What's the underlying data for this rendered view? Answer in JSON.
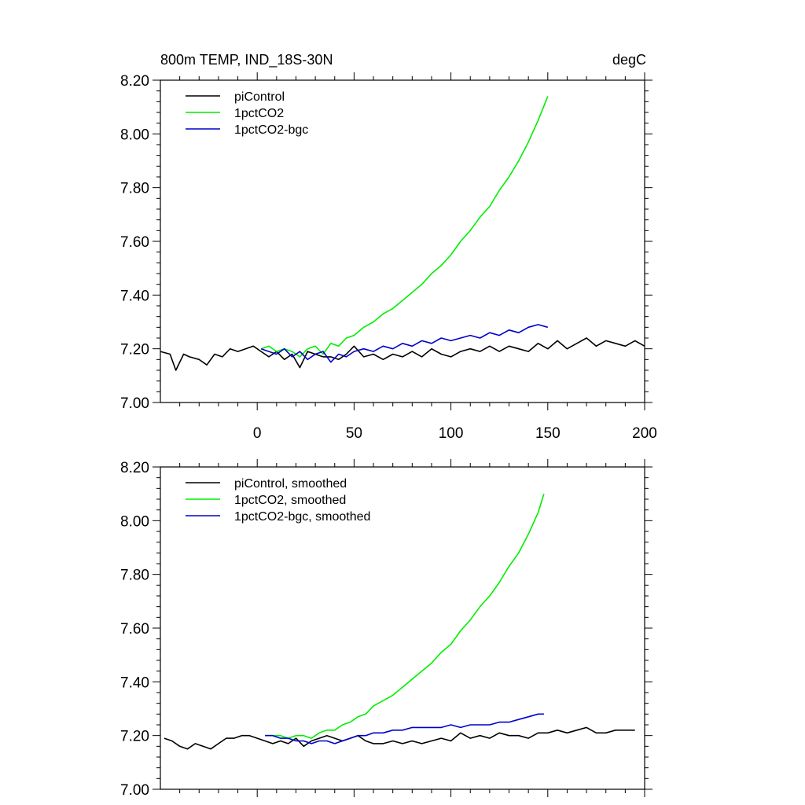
{
  "chart_data": [
    {
      "type": "line",
      "title": "800m TEMP, IND_18S-30N",
      "units": "degC",
      "ylim": [
        7.0,
        8.2
      ],
      "xlim": [
        -50,
        200
      ],
      "yticks": [
        "7.00",
        "7.20",
        "7.40",
        "7.60",
        "7.80",
        "8.00",
        "8.20"
      ],
      "xticks": [
        "0",
        "50",
        "100",
        "150",
        "200"
      ],
      "legend_position": "top-left",
      "series": [
        {
          "name": "piControl",
          "color": "#000000",
          "x": [
            -50,
            -45,
            -42,
            -38,
            -35,
            -30,
            -26,
            -22,
            -18,
            -14,
            -10,
            -6,
            -2,
            2,
            6,
            10,
            14,
            18,
            22,
            26,
            30,
            34,
            38,
            42,
            46,
            50,
            55,
            60,
            65,
            70,
            75,
            80,
            85,
            90,
            95,
            100,
            105,
            110,
            115,
            120,
            125,
            130,
            135,
            140,
            145,
            150,
            155,
            160,
            165,
            170,
            175,
            180,
            185,
            190,
            195,
            200
          ],
          "values": [
            7.19,
            7.18,
            7.12,
            7.18,
            7.17,
            7.16,
            7.14,
            7.18,
            7.17,
            7.2,
            7.19,
            7.2,
            7.21,
            7.19,
            7.17,
            7.19,
            7.16,
            7.18,
            7.13,
            7.19,
            7.18,
            7.17,
            7.17,
            7.16,
            7.18,
            7.21,
            7.17,
            7.18,
            7.16,
            7.18,
            7.17,
            7.19,
            7.17,
            7.2,
            7.18,
            7.17,
            7.19,
            7.2,
            7.19,
            7.21,
            7.19,
            7.21,
            7.2,
            7.19,
            7.22,
            7.2,
            7.23,
            7.2,
            7.22,
            7.24,
            7.21,
            7.23,
            7.22,
            7.21,
            7.23,
            7.21
          ]
        },
        {
          "name": "1pctCO2",
          "color": "#00ee00",
          "x": [
            2,
            6,
            10,
            14,
            18,
            22,
            26,
            30,
            34,
            38,
            42,
            46,
            50,
            55,
            60,
            65,
            70,
            75,
            80,
            85,
            90,
            95,
            100,
            105,
            110,
            115,
            120,
            125,
            130,
            135,
            140,
            145,
            150
          ],
          "values": [
            7.2,
            7.21,
            7.19,
            7.2,
            7.19,
            7.17,
            7.2,
            7.21,
            7.18,
            7.22,
            7.21,
            7.24,
            7.25,
            7.28,
            7.3,
            7.33,
            7.35,
            7.38,
            7.41,
            7.44,
            7.48,
            7.51,
            7.55,
            7.6,
            7.64,
            7.69,
            7.73,
            7.79,
            7.84,
            7.9,
            7.97,
            8.05,
            8.14
          ]
        },
        {
          "name": "1pctCO2-bgc",
          "color": "#0000cc",
          "x": [
            2,
            6,
            10,
            14,
            18,
            22,
            26,
            30,
            34,
            38,
            42,
            46,
            50,
            55,
            60,
            65,
            70,
            75,
            80,
            85,
            90,
            95,
            100,
            105,
            110,
            115,
            120,
            125,
            130,
            135,
            140,
            145,
            150
          ],
          "values": [
            7.2,
            7.19,
            7.18,
            7.2,
            7.17,
            7.19,
            7.16,
            7.18,
            7.19,
            7.15,
            7.18,
            7.17,
            7.19,
            7.2,
            7.19,
            7.21,
            7.2,
            7.22,
            7.21,
            7.23,
            7.22,
            7.24,
            7.23,
            7.24,
            7.25,
            7.24,
            7.26,
            7.25,
            7.27,
            7.26,
            7.28,
            7.29,
            7.28
          ]
        }
      ]
    },
    {
      "type": "line",
      "ylim": [
        7.0,
        8.2
      ],
      "xlim": [
        -50,
        200
      ],
      "yticks": [
        "7.00",
        "7.20",
        "7.40",
        "7.60",
        "7.80",
        "8.00",
        "8.20"
      ],
      "legend_position": "top-left",
      "series": [
        {
          "name": "piControl, smoothed",
          "color": "#000000",
          "x": [
            -48,
            -44,
            -40,
            -36,
            -32,
            -28,
            -24,
            -20,
            -16,
            -12,
            -8,
            -4,
            0,
            4,
            8,
            12,
            16,
            20,
            24,
            28,
            32,
            36,
            40,
            44,
            48,
            52,
            56,
            60,
            65,
            70,
            75,
            80,
            85,
            90,
            95,
            100,
            105,
            110,
            115,
            120,
            125,
            130,
            135,
            140,
            145,
            150,
            155,
            160,
            165,
            170,
            175,
            180,
            185,
            190,
            195
          ],
          "values": [
            7.19,
            7.18,
            7.16,
            7.15,
            7.17,
            7.16,
            7.15,
            7.17,
            7.19,
            7.19,
            7.2,
            7.2,
            7.19,
            7.18,
            7.17,
            7.18,
            7.17,
            7.19,
            7.16,
            7.18,
            7.19,
            7.2,
            7.19,
            7.18,
            7.19,
            7.2,
            7.18,
            7.17,
            7.17,
            7.18,
            7.17,
            7.18,
            7.17,
            7.18,
            7.19,
            7.18,
            7.21,
            7.19,
            7.2,
            7.19,
            7.21,
            7.2,
            7.2,
            7.19,
            7.21,
            7.21,
            7.22,
            7.21,
            7.22,
            7.23,
            7.21,
            7.21,
            7.22,
            7.22,
            7.22
          ]
        },
        {
          "name": "1pctCO2, smoothed",
          "color": "#00ee00",
          "x": [
            4,
            8,
            12,
            16,
            20,
            24,
            28,
            32,
            36,
            40,
            44,
            48,
            52,
            56,
            60,
            65,
            70,
            75,
            80,
            85,
            90,
            95,
            100,
            105,
            110,
            115,
            120,
            125,
            130,
            135,
            140,
            145,
            148
          ],
          "values": [
            7.2,
            7.2,
            7.2,
            7.19,
            7.2,
            7.2,
            7.19,
            7.21,
            7.22,
            7.22,
            7.24,
            7.25,
            7.27,
            7.28,
            7.31,
            7.33,
            7.35,
            7.38,
            7.41,
            7.44,
            7.47,
            7.51,
            7.54,
            7.59,
            7.63,
            7.68,
            7.72,
            7.77,
            7.83,
            7.88,
            7.95,
            8.03,
            8.1
          ]
        },
        {
          "name": "1pctCO2-bgc, smoothed",
          "color": "#0000cc",
          "x": [
            4,
            8,
            12,
            16,
            20,
            24,
            28,
            32,
            36,
            40,
            44,
            48,
            52,
            56,
            60,
            65,
            70,
            75,
            80,
            85,
            90,
            95,
            100,
            105,
            110,
            115,
            120,
            125,
            130,
            135,
            140,
            145,
            148
          ],
          "values": [
            7.2,
            7.2,
            7.19,
            7.19,
            7.18,
            7.18,
            7.17,
            7.18,
            7.18,
            7.17,
            7.18,
            7.19,
            7.2,
            7.2,
            7.21,
            7.21,
            7.22,
            7.22,
            7.23,
            7.23,
            7.23,
            7.23,
            7.24,
            7.23,
            7.24,
            7.24,
            7.24,
            7.25,
            7.25,
            7.26,
            7.27,
            7.28,
            7.28
          ]
        }
      ]
    }
  ]
}
